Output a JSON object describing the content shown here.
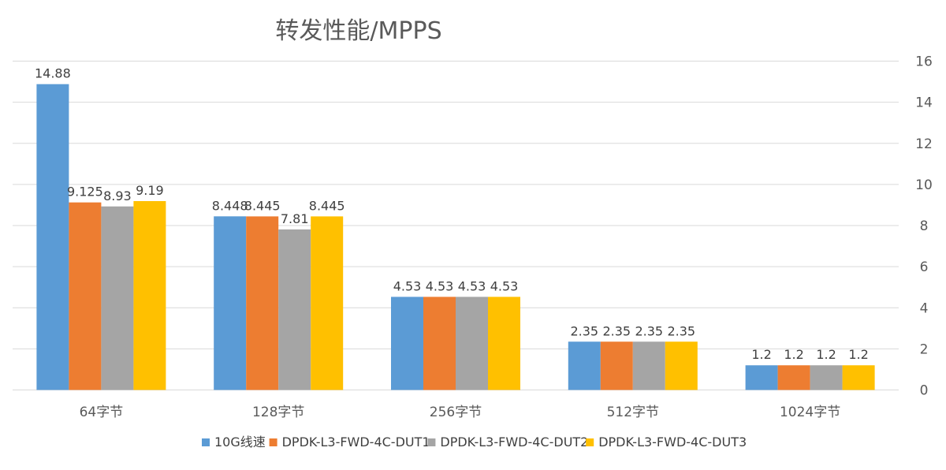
{
  "chart_data": {
    "type": "bar",
    "title": "转发性能/MPPS",
    "categories": [
      "64字节",
      "128字节",
      "256字节",
      "512字节",
      "1024字节"
    ],
    "series": [
      {
        "name": "10G线速",
        "color": "#5b9bd5",
        "values": [
          14.88,
          8.448,
          4.53,
          2.35,
          1.2
        ],
        "labels": [
          "14.88",
          "8.448",
          "4.53",
          "2.35",
          "1.2"
        ]
      },
      {
        "name": "DPDK-L3-FWD-4C-DUT1",
        "color": "#ed7d31",
        "values": [
          9.125,
          8.445,
          4.53,
          2.35,
          1.2
        ],
        "labels": [
          "9.125",
          "8.445",
          "4.53",
          "2.35",
          "1.2"
        ]
      },
      {
        "name": "DPDK-L3-FWD-4C-DUT2",
        "color": "#a5a5a5",
        "values": [
          8.93,
          7.81,
          4.53,
          2.35,
          1.2
        ],
        "labels": [
          "8.93",
          "7.81",
          "4.53",
          "2.35",
          "1.2"
        ]
      },
      {
        "name": "DPDK-L3-FWD-4C-DUT3",
        "color": "#ffc000",
        "values": [
          9.19,
          8.445,
          4.53,
          2.35,
          1.2
        ],
        "labels": [
          "9.19",
          "8.445",
          "4.53",
          "2.35",
          "1.2"
        ]
      }
    ],
    "yticks": [
      "0",
      "2",
      "4",
      "6",
      "8",
      "10",
      "12",
      "14",
      "16"
    ],
    "ylim": [
      0,
      16
    ],
    "yaxis_side": "right",
    "grid": true,
    "legend_position": "bottom"
  }
}
